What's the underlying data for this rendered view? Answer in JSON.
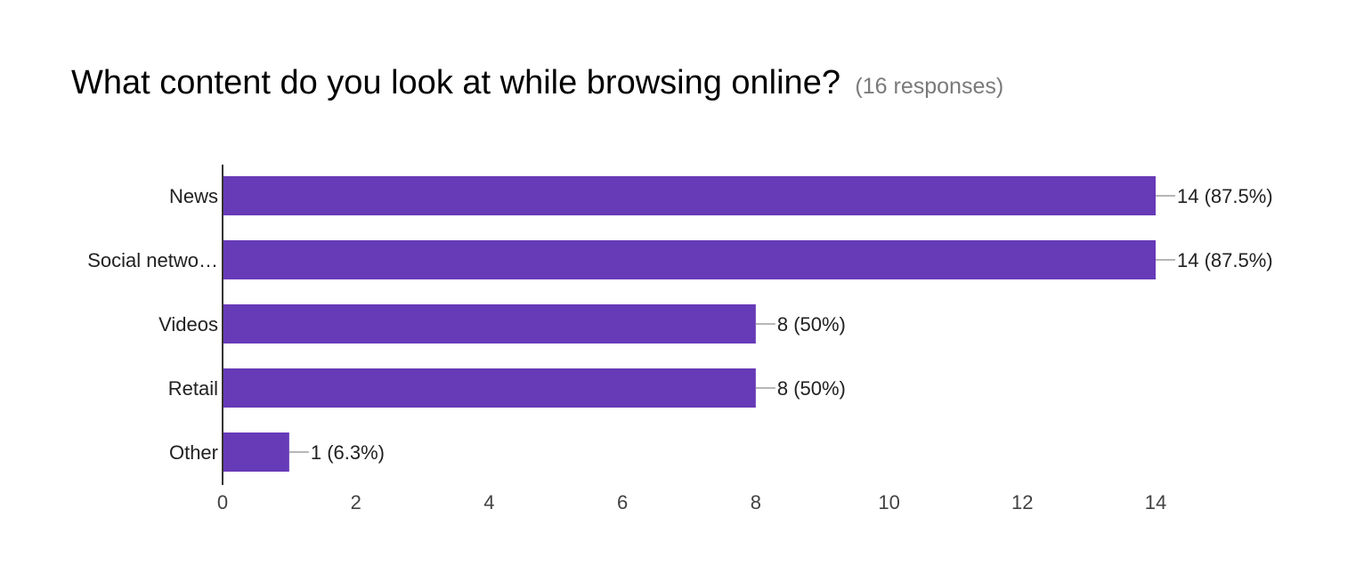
{
  "question": {
    "title": "What content do you look at while browsing online?",
    "responses": "(16 responses)"
  },
  "chart_data": {
    "type": "bar",
    "orientation": "horizontal",
    "categories": [
      "News",
      "Social netwo…",
      "Videos",
      "Retail",
      "Other"
    ],
    "values": [
      14,
      14,
      8,
      8,
      1
    ],
    "labels": [
      "14 (87.5%)",
      "14 (87.5%)",
      "8 (50%)",
      "8 (50%)",
      "1 (6.3%)"
    ],
    "xlim": [
      0,
      14
    ],
    "xticks": [
      "0",
      "2",
      "4",
      "6",
      "8",
      "10",
      "12",
      "14"
    ],
    "grid": false,
    "legend": "none",
    "bar_color": "#673ab7",
    "axis_color": "#333333",
    "leader_color": "#9e9e9e",
    "text_color": "#212121",
    "tick_text_color": "#424242"
  }
}
